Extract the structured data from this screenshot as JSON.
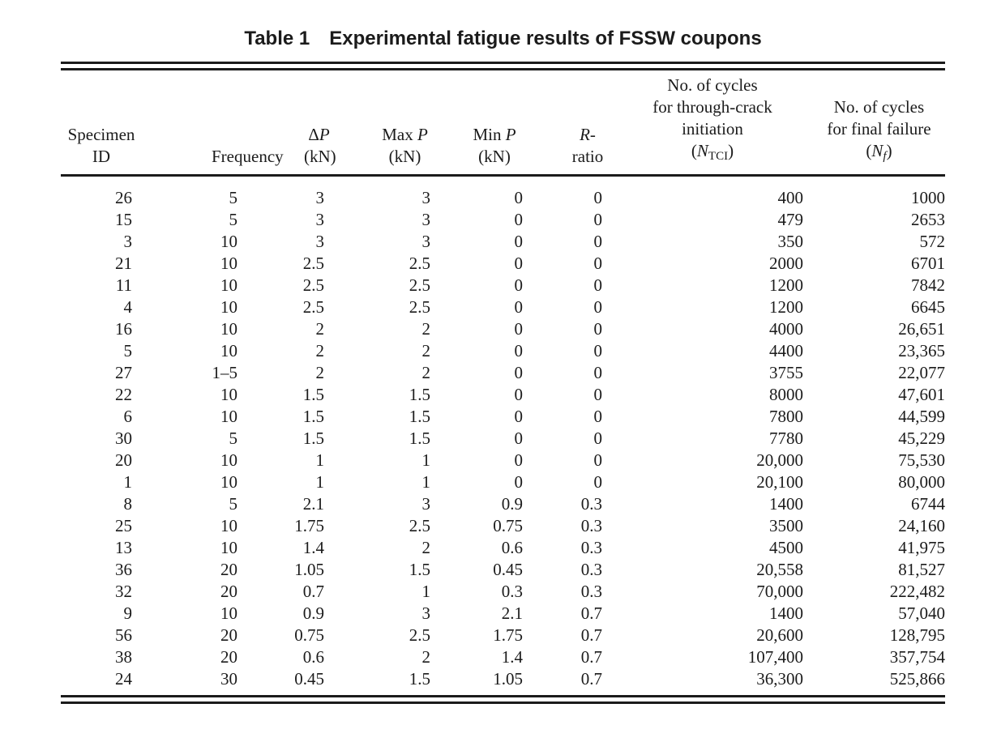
{
  "page": {
    "background_color": "#ffffff",
    "text_color": "#1b1b1b",
    "rule_color": "#1b1b1b"
  },
  "title": {
    "label": "Table 1",
    "text": "Experimental fatigue results of FSSW coupons"
  },
  "table": {
    "headers": {
      "specimen_line1": "Specimen",
      "specimen_line2": "ID",
      "frequency": "Frequency",
      "dp_symbol": "Δ",
      "dp_var": "P",
      "dp_unit": "(kN)",
      "maxp_label": "Max ",
      "maxp_var": "P",
      "maxp_unit": "(kN)",
      "minp_label": "Min ",
      "minp_var": "P",
      "minp_unit": "(kN)",
      "r_var": "R",
      "r_dash": "-",
      "r_line2": "ratio",
      "ntci_line1": "No. of cycles",
      "ntci_line2": "for through-crack",
      "ntci_line3": "initiation",
      "ntci_open": "(",
      "ntci_var": "N",
      "ntci_sub": "TCI",
      "ntci_close": ")",
      "nf_line1": "No. of cycles",
      "nf_line2": "for final failure",
      "nf_open": "(",
      "nf_var": "N",
      "nf_sub": "f",
      "nf_close": ")"
    },
    "rows": [
      [
        "26",
        "5",
        "3",
        "3",
        "0",
        "0",
        "400",
        "1000"
      ],
      [
        "15",
        "5",
        "3",
        "3",
        "0",
        "0",
        "479",
        "2653"
      ],
      [
        "3",
        "10",
        "3",
        "3",
        "0",
        "0",
        "350",
        "572"
      ],
      [
        "21",
        "10",
        "2.5",
        "2.5",
        "0",
        "0",
        "2000",
        "6701"
      ],
      [
        "11",
        "10",
        "2.5",
        "2.5",
        "0",
        "0",
        "1200",
        "7842"
      ],
      [
        "4",
        "10",
        "2.5",
        "2.5",
        "0",
        "0",
        "1200",
        "6645"
      ],
      [
        "16",
        "10",
        "2",
        "2",
        "0",
        "0",
        "4000",
        "26,651"
      ],
      [
        "5",
        "10",
        "2",
        "2",
        "0",
        "0",
        "4400",
        "23,365"
      ],
      [
        "27",
        "1–5",
        "2",
        "2",
        "0",
        "0",
        "3755",
        "22,077"
      ],
      [
        "22",
        "10",
        "1.5",
        "1.5",
        "0",
        "0",
        "8000",
        "47,601"
      ],
      [
        "6",
        "10",
        "1.5",
        "1.5",
        "0",
        "0",
        "7800",
        "44,599"
      ],
      [
        "30",
        "5",
        "1.5",
        "1.5",
        "0",
        "0",
        "7780",
        "45,229"
      ],
      [
        "20",
        "10",
        "1",
        "1",
        "0",
        "0",
        "20,000",
        "75,530"
      ],
      [
        "1",
        "10",
        "1",
        "1",
        "0",
        "0",
        "20,100",
        "80,000"
      ],
      [
        "8",
        "5",
        "2.1",
        "3",
        "0.9",
        "0.3",
        "1400",
        "6744"
      ],
      [
        "25",
        "10",
        "1.75",
        "2.5",
        "0.75",
        "0.3",
        "3500",
        "24,160"
      ],
      [
        "13",
        "10",
        "1.4",
        "2",
        "0.6",
        "0.3",
        "4500",
        "41,975"
      ],
      [
        "36",
        "20",
        "1.05",
        "1.5",
        "0.45",
        "0.3",
        "20,558",
        "81,527"
      ],
      [
        "32",
        "20",
        "0.7",
        "1",
        "0.3",
        "0.3",
        "70,000",
        "222,482"
      ],
      [
        "9",
        "10",
        "0.9",
        "3",
        "2.1",
        "0.7",
        "1400",
        "57,040"
      ],
      [
        "56",
        "20",
        "0.75",
        "2.5",
        "1.75",
        "0.7",
        "20,600",
        "128,795"
      ],
      [
        "38",
        "20",
        "0.6",
        "2",
        "1.4",
        "0.7",
        "107,400",
        "357,754"
      ],
      [
        "24",
        "30",
        "0.45",
        "1.5",
        "1.05",
        "0.7",
        "36,300",
        "525,866"
      ]
    ]
  }
}
